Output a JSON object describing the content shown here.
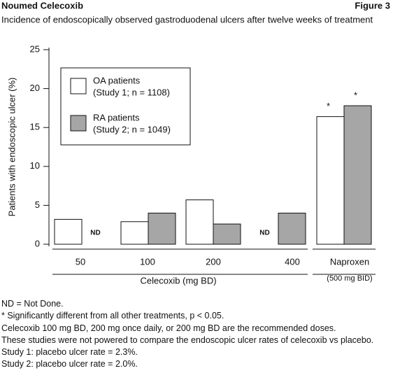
{
  "chart_data": {
    "type": "bar",
    "brand": "Noumed Celecoxib",
    "figure": "Figure 3",
    "title": "Incidence of endoscopically observed gastroduodenal ulcers after twelve weeks of treatment",
    "y_label": "Patients with endoscopic ulcer (%)",
    "x_label": "Celecoxib (mg BD)",
    "categories": [
      "50",
      "100",
      "200",
      "400",
      "Naproxen"
    ],
    "category_notes": [
      null,
      null,
      null,
      null,
      "(500 mg BID)"
    ],
    "series": [
      {
        "name": "OA patients",
        "detail": "(Study 1; n = 1108)",
        "color": "#ffffff",
        "values": [
          3.2,
          2.9,
          5.7,
          null,
          16.4
        ],
        "value_labels": [
          null,
          null,
          null,
          "ND",
          null
        ],
        "markers": [
          null,
          null,
          null,
          null,
          "*"
        ]
      },
      {
        "name": "RA patients",
        "detail": "(Study 2; n = 1049)",
        "color": "#a6a6a6",
        "values": [
          null,
          4.0,
          2.6,
          4.0,
          17.8
        ],
        "value_labels": [
          "ND",
          null,
          null,
          null,
          null
        ],
        "markers": [
          null,
          null,
          null,
          null,
          "*"
        ]
      }
    ],
    "ylim": [
      0,
      25
    ],
    "yticks": [
      0,
      5,
      10,
      15,
      20,
      25
    ],
    "footnotes": [
      "ND = Not Done.",
      "* Significantly different from all other treatments, p < 0.05.",
      "Celecoxib 100 mg BD, 200 mg once daily, or 200 mg BD are the recommended doses.",
      "These studies were not powered to compare the endoscopic ulcer rates of celecoxib vs placebo.",
      "Study 1: placebo ulcer rate = 2.3%.",
      "Study 2: placebo ulcer rate = 2.0%."
    ]
  }
}
